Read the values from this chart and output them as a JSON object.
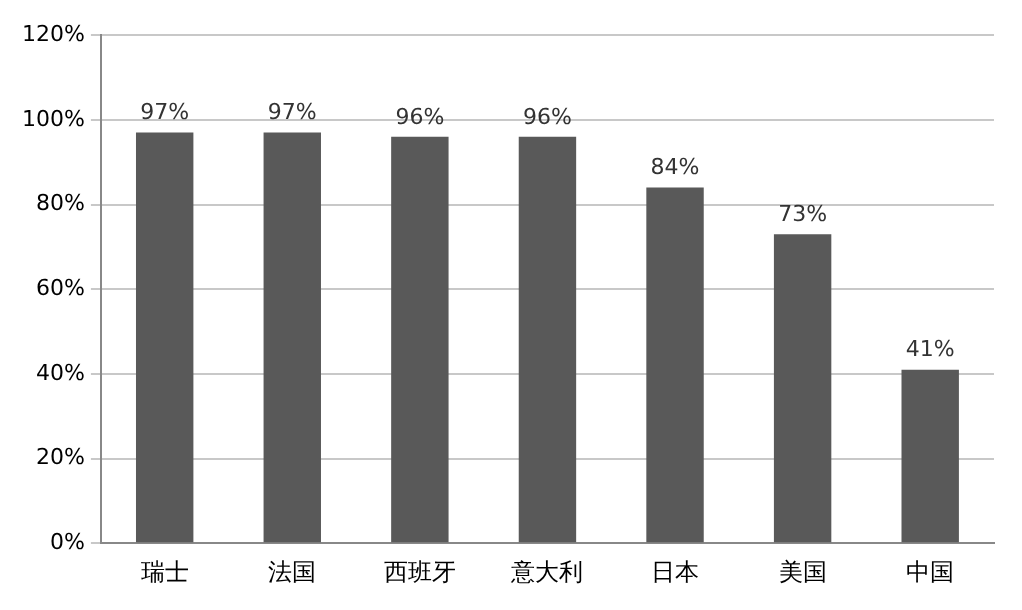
{
  "chart_data": {
    "type": "bar",
    "categories": [
      "瑞士",
      "法国",
      "西班牙",
      "意大利",
      "日本",
      "美国",
      "中国"
    ],
    "values": [
      97,
      97,
      96,
      96,
      84,
      73,
      41
    ],
    "value_labels": [
      "97%",
      "97%",
      "96%",
      "96%",
      "84%",
      "73%",
      "41%"
    ],
    "color": "#595959",
    "ylim": [
      0,
      120
    ],
    "yticks": [
      {
        "value": 0,
        "label": "0%"
      },
      {
        "value": 20,
        "label": "20%"
      },
      {
        "value": 40,
        "label": "40%"
      },
      {
        "value": 60,
        "label": "60%"
      },
      {
        "value": 80,
        "label": "80%"
      },
      {
        "value": 100,
        "label": "100%"
      },
      {
        "value": 120,
        "label": "120%"
      }
    ],
    "grid": "y",
    "legend": false
  }
}
